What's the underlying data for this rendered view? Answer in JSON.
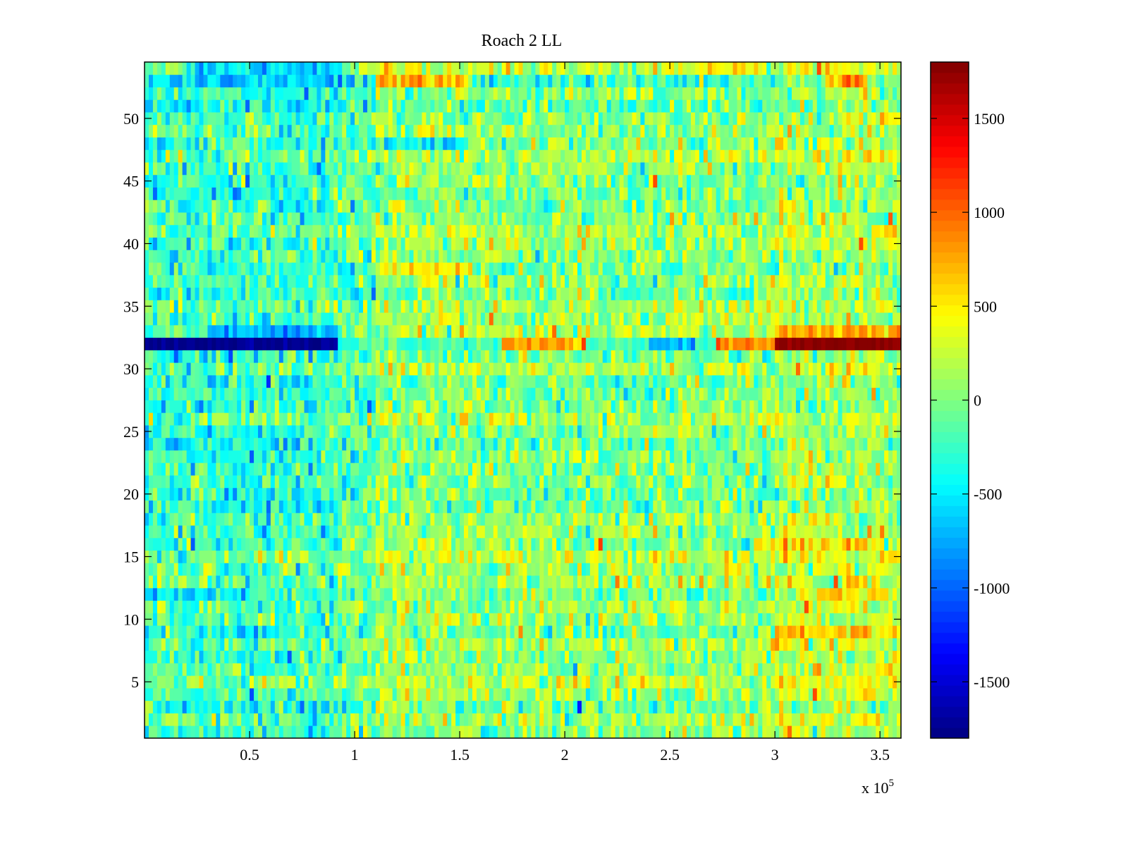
{
  "chart_data": {
    "type": "heatmap",
    "title": "Roach 2 LL",
    "xlabel": "",
    "ylabel": "",
    "x_exponent_label": "x 10",
    "x_exponent_power": "5",
    "xlim": [
      0,
      360000
    ],
    "ylim": [
      0.5,
      54.5
    ],
    "clim": [
      -1800,
      1800
    ],
    "colormap": "jet",
    "n_rows": 54,
    "column_bin": 2000,
    "x_ticks": [
      {
        "value": 50000,
        "label": "0.5"
      },
      {
        "value": 100000,
        "label": "1"
      },
      {
        "value": 150000,
        "label": "1.5"
      },
      {
        "value": 200000,
        "label": "2"
      },
      {
        "value": 250000,
        "label": "2.5"
      },
      {
        "value": 300000,
        "label": "3"
      },
      {
        "value": 350000,
        "label": "3.5"
      }
    ],
    "y_ticks": [
      {
        "value": 5,
        "label": "5"
      },
      {
        "value": 10,
        "label": "10"
      },
      {
        "value": 15,
        "label": "15"
      },
      {
        "value": 20,
        "label": "20"
      },
      {
        "value": 25,
        "label": "25"
      },
      {
        "value": 30,
        "label": "30"
      },
      {
        "value": 35,
        "label": "35"
      },
      {
        "value": 40,
        "label": "40"
      },
      {
        "value": 45,
        "label": "45"
      },
      {
        "value": 50,
        "label": "50"
      }
    ],
    "colorbar_ticks": [
      {
        "value": 1500,
        "label": "1500"
      },
      {
        "value": 1000,
        "label": "1000"
      },
      {
        "value": 500,
        "label": "500"
      },
      {
        "value": 0,
        "label": "0"
      },
      {
        "value": -500,
        "label": "-500"
      },
      {
        "value": -1000,
        "label": "-1000"
      },
      {
        "value": -1500,
        "label": "-1500"
      }
    ],
    "noise_std": 260,
    "column_baseline": [
      {
        "from": 0,
        "to": 93000,
        "mean": -230
      },
      {
        "from": 93000,
        "to": 110000,
        "mean": -120
      },
      {
        "from": 110000,
        "to": 160000,
        "mean": 80
      },
      {
        "from": 160000,
        "to": 300000,
        "mean": 40
      },
      {
        "from": 300000,
        "to": 360000,
        "mean": 170
      }
    ],
    "row_overrides": [
      {
        "row": 32,
        "segments": [
          {
            "from": 0,
            "to": 93000,
            "mean": -1750,
            "std": 60
          },
          {
            "from": 93000,
            "to": 170000,
            "mean": -200,
            "std": 150
          },
          {
            "from": 170000,
            "to": 210000,
            "mean": 750,
            "std": 120
          },
          {
            "from": 210000,
            "to": 240000,
            "mean": -250,
            "std": 120
          },
          {
            "from": 240000,
            "to": 262000,
            "mean": -700,
            "std": 120
          },
          {
            "from": 262000,
            "to": 272000,
            "mean": -200,
            "std": 120
          },
          {
            "from": 272000,
            "to": 300000,
            "mean": 900,
            "std": 120
          },
          {
            "from": 300000,
            "to": 360000,
            "mean": 1750,
            "std": 40
          }
        ]
      },
      {
        "row": 33,
        "segments": [
          {
            "from": 30000,
            "to": 93000,
            "mean": -750,
            "std": 180
          },
          {
            "from": 300000,
            "to": 360000,
            "mean": 750,
            "std": 200
          }
        ]
      },
      {
        "row": 53,
        "segments": [
          {
            "from": 25000,
            "to": 95000,
            "mean": -600,
            "std": 200
          },
          {
            "from": 110000,
            "to": 155000,
            "mean": 650,
            "std": 200
          },
          {
            "from": 325000,
            "to": 345000,
            "mean": 700,
            "std": 200
          }
        ]
      },
      {
        "row": 54,
        "segments": [
          {
            "from": 25000,
            "to": 95000,
            "mean": -550,
            "std": 200
          }
        ]
      },
      {
        "row": 48,
        "segments": [
          {
            "from": 115000,
            "to": 155000,
            "mean": -550,
            "std": 200
          }
        ]
      },
      {
        "row": 38,
        "segments": [
          {
            "from": 110000,
            "to": 155000,
            "mean": 450,
            "std": 200
          }
        ]
      },
      {
        "row": 9,
        "segments": [
          {
            "from": 300000,
            "to": 360000,
            "mean": 600,
            "std": 200
          }
        ]
      },
      {
        "row": 16,
        "segments": [
          {
            "from": 290000,
            "to": 350000,
            "mean": 550,
            "std": 200
          }
        ]
      },
      {
        "row": 12,
        "segments": [
          {
            "from": 0,
            "to": 50000,
            "mean": -550,
            "std": 200
          },
          {
            "from": 310000,
            "to": 360000,
            "mean": 450,
            "std": 200
          }
        ]
      }
    ],
    "seed": 7
  }
}
